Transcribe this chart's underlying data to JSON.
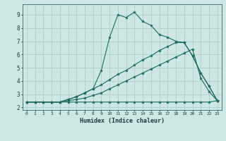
{
  "xlabel": "Humidex (Indice chaleur)",
  "xlim": [
    -0.5,
    23.5
  ],
  "ylim": [
    1.8,
    9.8
  ],
  "xticks": [
    0,
    1,
    2,
    3,
    4,
    5,
    6,
    7,
    8,
    9,
    10,
    11,
    12,
    13,
    14,
    15,
    16,
    17,
    18,
    19,
    20,
    21,
    22,
    23
  ],
  "yticks": [
    2,
    3,
    4,
    5,
    6,
    7,
    8,
    9
  ],
  "background_color": "#cde8e4",
  "grid_color": "#b0d0cc",
  "line_color": "#1e6b5e",
  "lines": [
    [
      2.4,
      2.4,
      2.4,
      2.4,
      2.4,
      2.4,
      2.4,
      2.4,
      2.4,
      2.4,
      2.4,
      2.4,
      2.4,
      2.4,
      2.4,
      2.4,
      2.4,
      2.4,
      2.4,
      2.4,
      2.4,
      2.4,
      2.4,
      2.5
    ],
    [
      2.4,
      2.4,
      2.4,
      2.4,
      2.4,
      2.5,
      2.6,
      2.7,
      2.9,
      3.1,
      3.4,
      3.7,
      4.0,
      4.3,
      4.6,
      4.9,
      5.2,
      5.5,
      5.8,
      6.1,
      6.4,
      4.2,
      3.2,
      2.5
    ],
    [
      2.4,
      2.4,
      2.4,
      2.4,
      2.4,
      2.6,
      2.8,
      3.1,
      3.4,
      3.7,
      4.1,
      4.5,
      4.8,
      5.2,
      5.6,
      5.9,
      6.3,
      6.6,
      6.9,
      6.9,
      5.9,
      4.6,
      3.6,
      2.5
    ],
    [
      2.4,
      2.4,
      2.4,
      2.4,
      2.4,
      2.6,
      2.8,
      3.1,
      3.4,
      4.8,
      7.3,
      9.0,
      8.8,
      9.2,
      8.5,
      8.2,
      7.5,
      7.3,
      7.0,
      6.9,
      5.9,
      4.6,
      3.6,
      2.5
    ]
  ]
}
